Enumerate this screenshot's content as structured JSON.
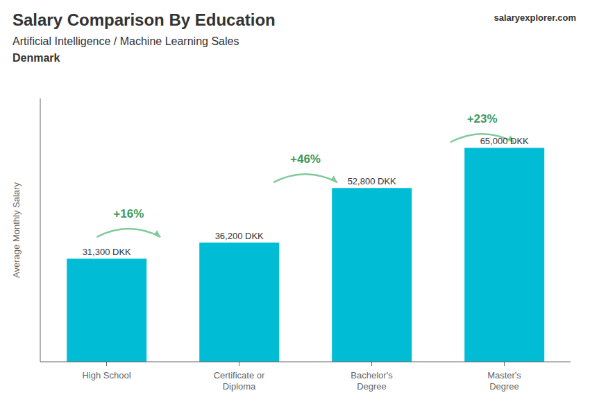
{
  "chart_data": {
    "type": "bar",
    "title": "Salary Comparison By Education",
    "subtitle": "Artificial Intelligence / Machine Learning Sales",
    "annotations": [
      "Denmark"
    ],
    "source": [
      "salary",
      "explorer",
      ".com"
    ],
    "y_label": "Average Monthly Salary",
    "categories": [
      "High School",
      "Certificate or\nDiploma",
      "Bachelor's\nDegree",
      "Master's\nDegree"
    ],
    "values": [
      31300,
      36200,
      52800,
      65000
    ],
    "value_labels": [
      "31,300 DKK",
      "36,200 DKK",
      "52,800 DKK",
      "65,000 DKK"
    ],
    "data_labels": true,
    "change_labels": [
      "+16%",
      "+46%",
      "+23%"
    ],
    "color": "#00bcd4",
    "ylim": [
      0,
      80000
    ],
    "tick_labels": false,
    "grid": false
  }
}
